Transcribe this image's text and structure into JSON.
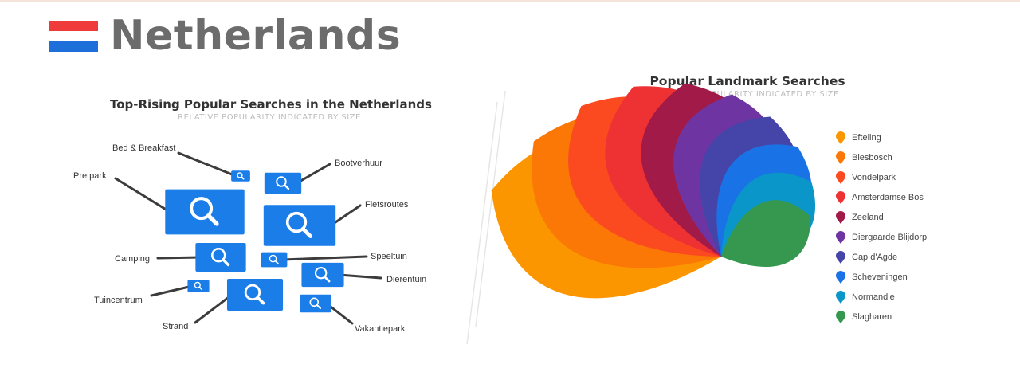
{
  "header": {
    "country": "Netherlands",
    "flag_colors": [
      "#ef3b39",
      "#ffffff",
      "#1d70d9"
    ]
  },
  "chart_data": [
    {
      "type": "bubble",
      "title": "Top-Rising Popular Searches in the Netherlands",
      "subtitle": "RELATIVE POPULARITY INDICATED BY SIZE",
      "icon": "search-icon",
      "color": "#1a7de8",
      "items": [
        {
          "label": "Pretpark",
          "size": 8.8
        },
        {
          "label": "Fietsroutes",
          "size": 8.0
        },
        {
          "label": "Strand",
          "size": 6.2
        },
        {
          "label": "Camping",
          "size": 5.6
        },
        {
          "label": "Dierentuin",
          "size": 4.7
        },
        {
          "label": "Bootverhuur",
          "size": 4.1
        },
        {
          "label": "Vakantiepark",
          "size": 3.5
        },
        {
          "label": "Speeltuin",
          "size": 2.9
        },
        {
          "label": "Tuincentrum",
          "size": 2.4
        },
        {
          "label": "Bed & Breakfast",
          "size": 2.1
        }
      ]
    },
    {
      "type": "petal",
      "title": "Popular Landmark Searches",
      "subtitle": "RELATIVE POPULARITY INDICATED BY SIZE",
      "legend_position": "right",
      "series": [
        {
          "name": "Efteling",
          "value": 100,
          "color": "#fb9500"
        },
        {
          "name": "Biesbosch",
          "value": 92,
          "color": "#fb7806"
        },
        {
          "name": "Vondelpark",
          "value": 86,
          "color": "#fb4a20"
        },
        {
          "name": "Amsterdamse Bos",
          "value": 80,
          "color": "#ee3132"
        },
        {
          "name": "Zeeland",
          "value": 74,
          "color": "#a21b48"
        },
        {
          "name": "Diergaarde Blijdorp",
          "value": 68,
          "color": "#6e35a2"
        },
        {
          "name": "Cap d'Agde",
          "value": 62,
          "color": "#4545a9"
        },
        {
          "name": "Scheveningen",
          "value": 56,
          "color": "#1a73e6"
        },
        {
          "name": "Normandie",
          "value": 49,
          "color": "#0a96c8"
        },
        {
          "name": "Slagharen",
          "value": 41,
          "color": "#36984e"
        }
      ]
    }
  ]
}
